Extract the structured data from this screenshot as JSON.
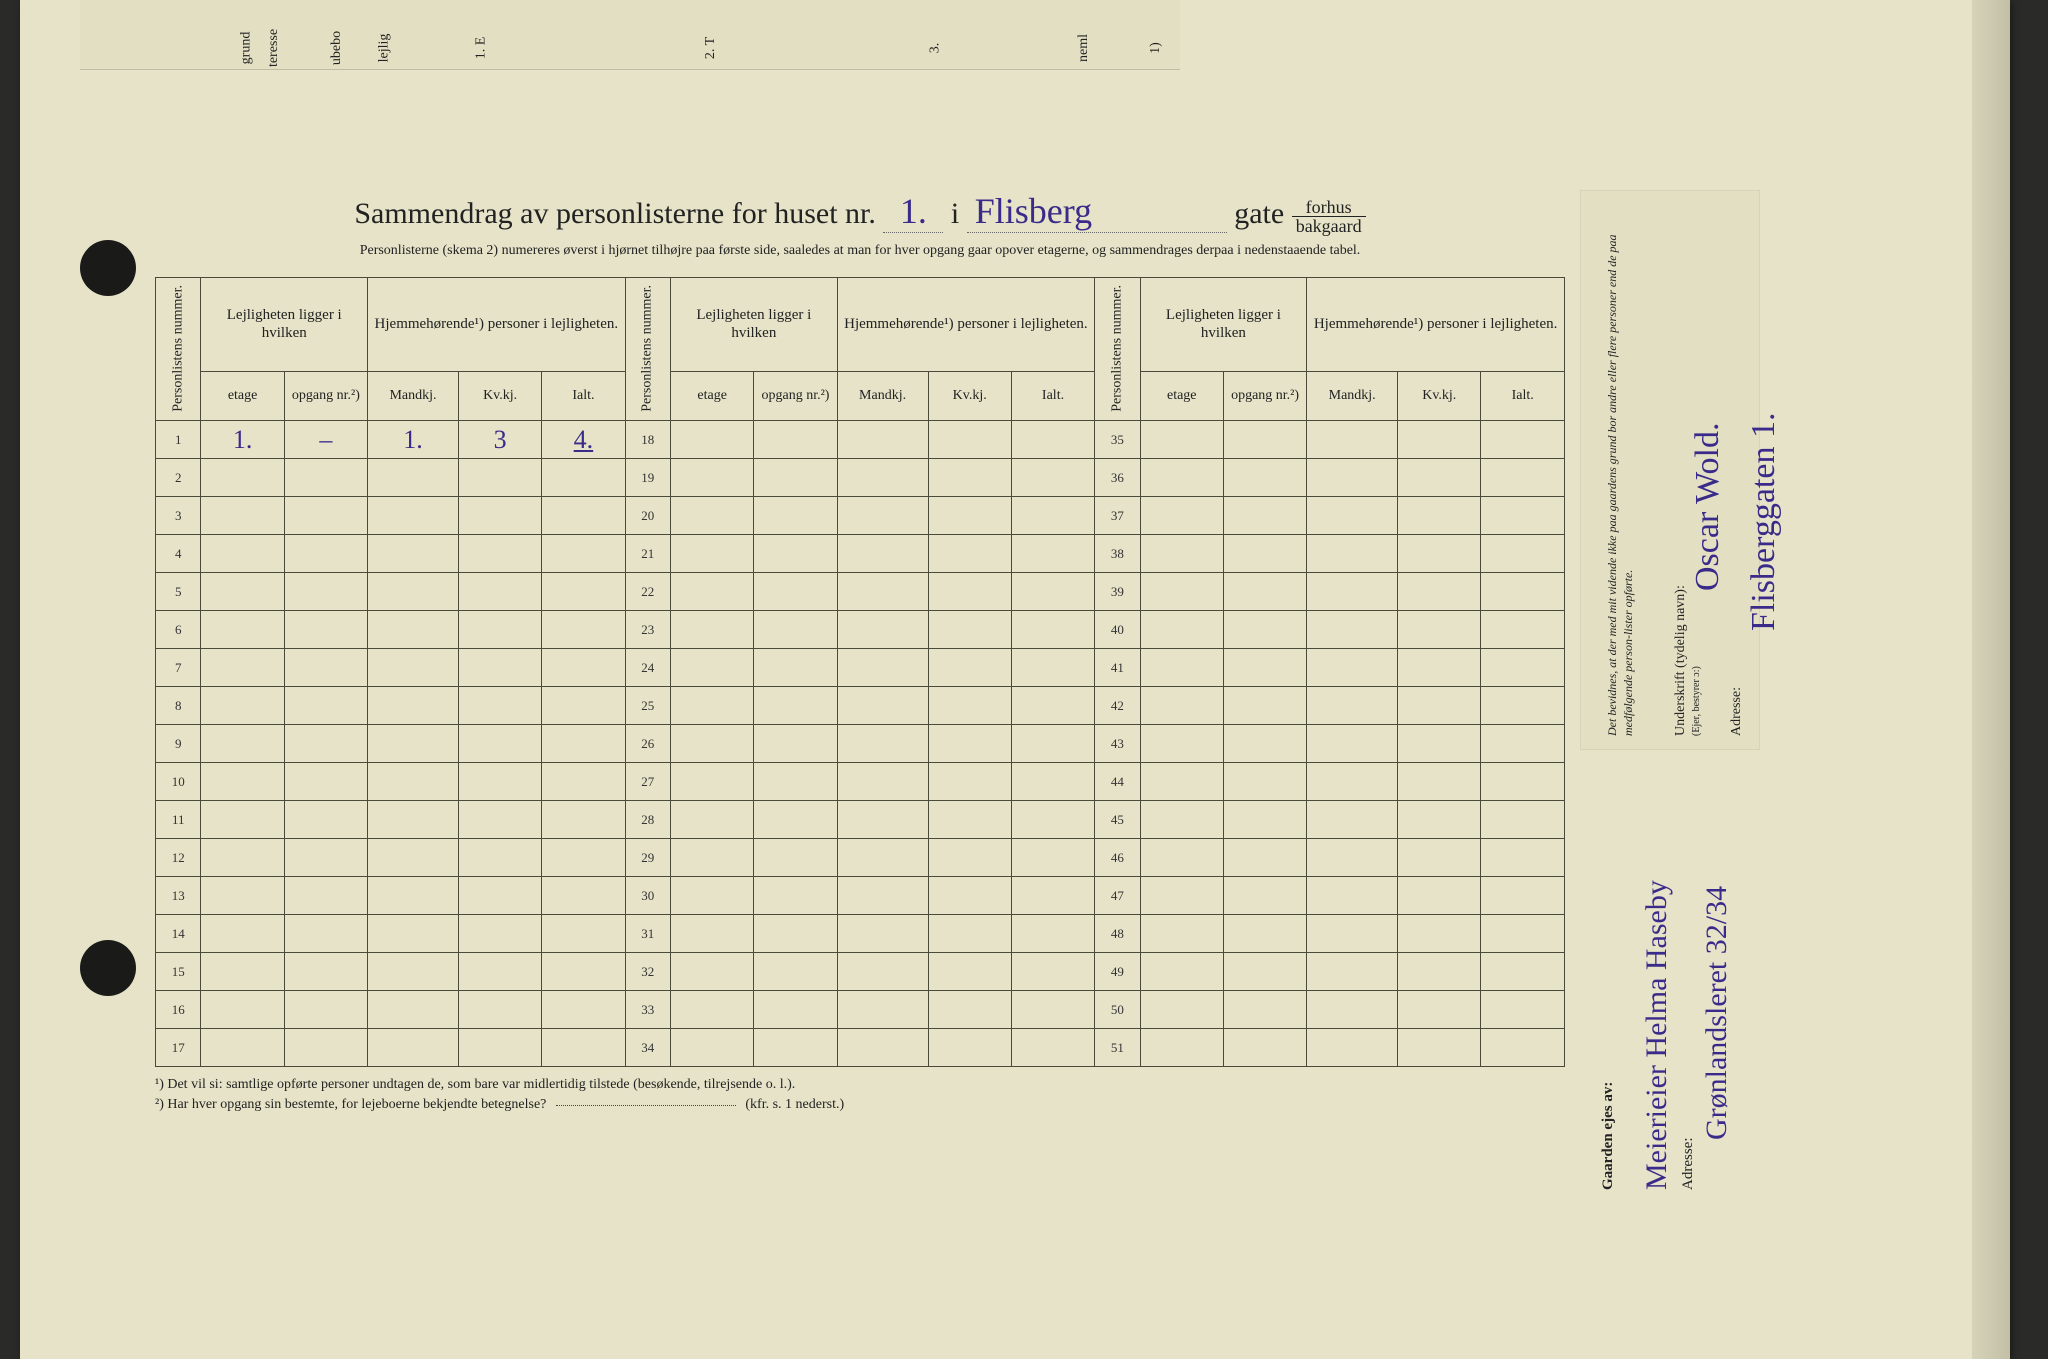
{
  "colors": {
    "paper": "#e6e3c8",
    "ink": "#222222",
    "handwriting": "#3a2a8a",
    "border": "#4a4a3a",
    "background": "#2a2a28"
  },
  "typography": {
    "body_family": "Georgia, 'Times New Roman', serif",
    "hand_family": "'Brush Script MT', cursive",
    "title_size_pt": 22,
    "subtitle_size_pt": 10,
    "header_size_pt": 10,
    "cell_size_pt": 10,
    "hand_size_pt": 20
  },
  "top_fragment": {
    "labels": [
      "grund",
      "teresse",
      "ubebo",
      "lejlig",
      "1.  E",
      "2.  T",
      "3.",
      "neml",
      "1)"
    ]
  },
  "title": {
    "prefix": "Sammendrag av personlisterne for huset nr.",
    "house_number": "1.",
    "mid": "i",
    "street": "Flisberg",
    "suffix": "gate",
    "frac_top": "forhus",
    "frac_bot": "bakgaard"
  },
  "subtitle": "Personlisterne (skema 2) numereres øverst i hjørnet tilhøjre paa første side, saaledes at man for hver opgang gaar opover etagerne, og sammendrages derpaa i nedenstaaende tabel.",
  "headers": {
    "personlistens": "Personlistens nummer.",
    "lejlighet_group": "Lejligheten ligger i hvilken",
    "hjemme_group": "Hjemmehørende¹) personer i lejligheten.",
    "etage": "etage",
    "opgang": "opgang nr.²)",
    "mandkj": "Mandkj.",
    "kvkj": "Kv.kj.",
    "ialt": "Ialt."
  },
  "rows": {
    "count_per_block": 17,
    "blocks": 3,
    "start_numbers": [
      1,
      18,
      35
    ],
    "filled": {
      "1": {
        "etage": "1.",
        "opgang": "–",
        "mandkj": "1.",
        "kvkj": "3",
        "ialt": "4."
      }
    }
  },
  "footnotes": {
    "f1": "¹)  Det vil si: samtlige opførte personer undtagen de, som bare var midlertidig tilstede (besøkende, tilrejsende o. l.).",
    "f2_prefix": "²)  Har hver opgang sin bestemte, for lejeboerne bekjendte betegnelse?",
    "f2_suffix": "(kfr. s. 1 nederst.)"
  },
  "right_panel": {
    "attest": "Det bevidnes, at der med mit vidende ikke paa gaardens grund bor andre eller flere personer end de paa medfølgende person-lister opførte.",
    "underskrift_label": "Underskrift (tydelig navn):",
    "signature": "Oscar Wold.",
    "adresse_label": "Adresse:",
    "adresse_value": "Flisberggaten 1.",
    "bestyrer_note": "(Ejer, bestyrer ɔ:)"
  },
  "owner_block": {
    "label": "Gaarden ejes av:",
    "owner": "Meierieier Helma Haseby",
    "adresse_label": "Adresse:",
    "adresse_value": "Grønlandsleret 32/34"
  }
}
